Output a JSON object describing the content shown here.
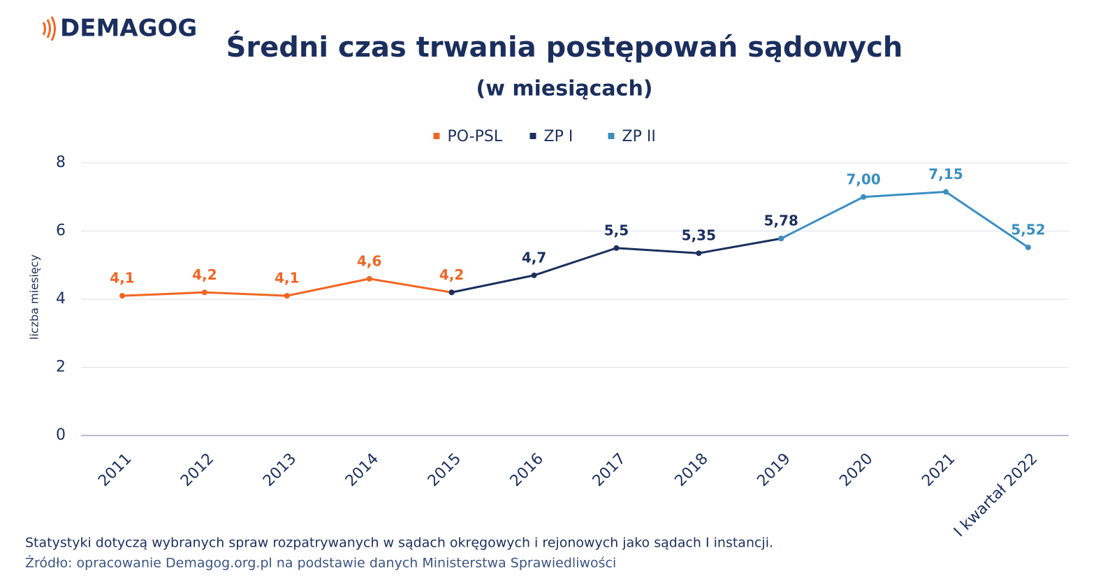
{
  "logo": "DEMAGOG",
  "chart_data": {
    "type": "line",
    "title": "Średni czas trwania postępowań sądowych",
    "subtitle": "(w miesiącach)",
    "y_label": "liczba miesięcy",
    "categories": [
      "2011",
      "2012",
      "2013",
      "2014",
      "2015",
      "2016",
      "2017",
      "2018",
      "2019",
      "2020",
      "2021",
      "I kwartał 2022"
    ],
    "series": [
      {
        "name": "PO-PSL",
        "color": "#f26522",
        "values": [
          4.1,
          4.2,
          4.1,
          4.6,
          4.2,
          null,
          null,
          null,
          null,
          null,
          null,
          null
        ],
        "value_labels": [
          "4,1",
          "4,2",
          "4,1",
          "4,6",
          "4,2",
          null,
          null,
          null,
          null,
          null,
          null,
          null
        ]
      },
      {
        "name": "ZP I",
        "color": "#1b2f5e",
        "values": [
          null,
          null,
          null,
          null,
          4.2,
          4.7,
          5.5,
          5.35,
          5.78,
          null,
          null,
          null
        ],
        "value_labels": [
          null,
          null,
          null,
          null,
          null,
          "4,7",
          "5,5",
          "5,35",
          "5,78",
          null,
          null,
          null
        ]
      },
      {
        "name": "ZP II",
        "color": "#3a8fc0",
        "values": [
          null,
          null,
          null,
          null,
          null,
          null,
          null,
          null,
          5.78,
          7.0,
          7.15,
          5.52
        ],
        "value_labels": [
          null,
          null,
          null,
          null,
          null,
          null,
          null,
          null,
          null,
          "7,00",
          "7,15",
          "5,52"
        ]
      }
    ],
    "ylim": [
      0,
      8
    ],
    "yticks": [
      0,
      2,
      4,
      6,
      8
    ],
    "grid": true,
    "legend": "top",
    "notes": [
      "Statystyki dotyczą wybranych spraw rozpatrywanych w sądach okręgowych i rejonowych jako sądach I instancji.",
      "Źródło: opracowanie Demagog.org.pl na podstawie danych Ministerstwa Sprawiedliwości"
    ]
  }
}
